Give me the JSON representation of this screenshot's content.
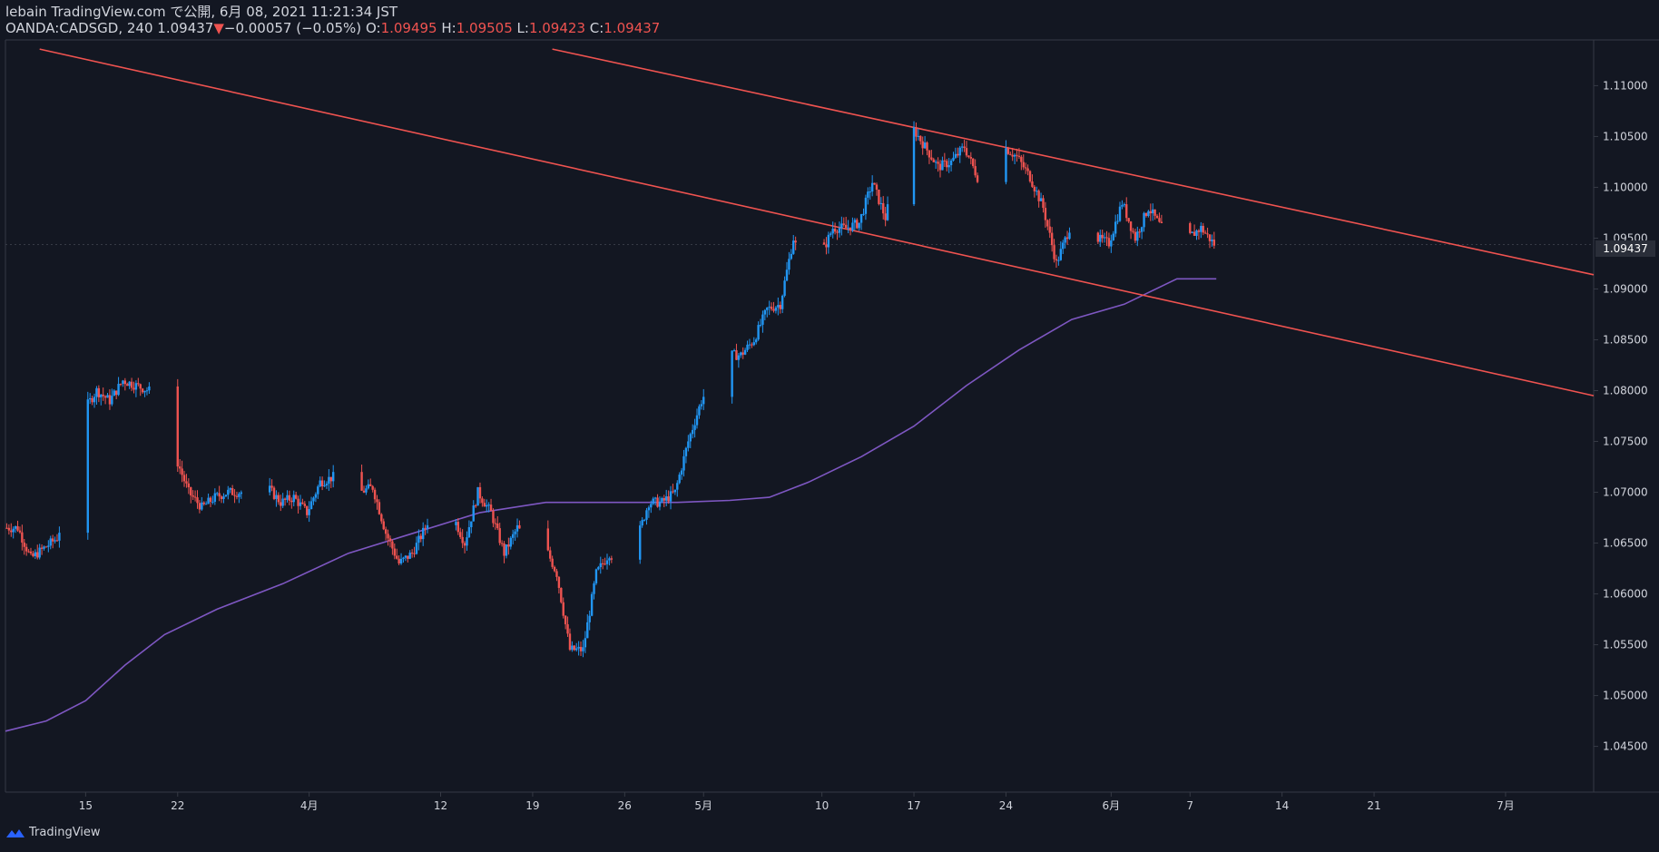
{
  "header": {
    "publish_line": "lebain TradingView.com で公開, 6月 08, 2021 11:21:34 JST",
    "symbol": "OANDA:CADSGD, 240",
    "last": "1.09437",
    "change_arrow": "▼",
    "change": "−0.00057 (−0.05%)",
    "o_label": "O:",
    "o_value": "1.09495",
    "h_label": "H:",
    "h_value": "1.09505",
    "l_label": "L:",
    "l_value": "1.09423",
    "c_label": "C:",
    "c_value": "1.09437"
  },
  "footer": {
    "brand": "TradingView"
  },
  "price_tag": "1.09437",
  "colors": {
    "background": "#131722",
    "up": "#2196f3",
    "down": "#ef5350",
    "ma": "#7e57c2",
    "trendline": "#ef5350",
    "axis_text": "#d1d4dc",
    "grid": "#363a45"
  },
  "chart_data": {
    "type": "candlestick",
    "title": "OANDA:CADSGD, 240",
    "ylim": [
      1.0405,
      1.1145
    ],
    "y_ticks": [
      "1.04500",
      "1.05000",
      "1.05500",
      "1.06000",
      "1.06500",
      "1.07000",
      "1.07500",
      "1.08000",
      "1.08500",
      "1.09000",
      "1.09500",
      "1.10000",
      "1.10500",
      "1.11000"
    ],
    "x_ticks": [
      {
        "label": "15",
        "day": 15
      },
      {
        "label": "22",
        "day": 22
      },
      {
        "label": "4月",
        "day": 32
      },
      {
        "label": "12",
        "day": 42
      },
      {
        "label": "19",
        "day": 49
      },
      {
        "label": "26",
        "day": 56
      },
      {
        "label": "5月",
        "day": 62
      },
      {
        "label": "10",
        "day": 71
      },
      {
        "label": "17",
        "day": 78
      },
      {
        "label": "24",
        "day": 85
      },
      {
        "label": "6月",
        "day": 93
      },
      {
        "label": "7",
        "day": 99
      },
      {
        "label": "14",
        "day": 106
      },
      {
        "label": "21",
        "day": 113
      },
      {
        "label": "7月",
        "day": 123
      }
    ],
    "x_range_days": [
      8.9,
      129.7
    ],
    "last_price": 1.09437,
    "price_path": [
      [
        9,
        1.0665
      ],
      [
        10,
        1.0665
      ],
      [
        11,
        1.0635
      ],
      [
        12,
        1.0645
      ],
      [
        13,
        1.0655
      ],
      [
        14,
        1.07
      ],
      [
        15,
        1.078
      ],
      [
        16,
        1.08
      ],
      [
        17,
        1.079
      ],
      [
        18,
        1.081
      ],
      [
        19,
        1.0805
      ],
      [
        20,
        1.08
      ],
      [
        21,
        1.0745
      ],
      [
        22,
        1.0735
      ],
      [
        23,
        1.07
      ],
      [
        24,
        1.0685
      ],
      [
        25,
        1.0695
      ],
      [
        26,
        1.07
      ],
      [
        27,
        1.07
      ],
      [
        28,
        1.069
      ],
      [
        29,
        1.0705
      ],
      [
        30,
        1.069
      ],
      [
        31,
        1.0695
      ],
      [
        32,
        1.068
      ],
      [
        33,
        1.071
      ],
      [
        34,
        1.0715
      ],
      [
        35,
        1.0715
      ],
      [
        36,
        1.07
      ],
      [
        37,
        1.0705
      ],
      [
        38,
        1.066
      ],
      [
        39,
        1.063
      ],
      [
        40,
        1.064
      ],
      [
        41,
        1.0665
      ],
      [
        42,
        1.07
      ],
      [
        43,
        1.068
      ],
      [
        44,
        1.065
      ],
      [
        45,
        1.07
      ],
      [
        46,
        1.068
      ],
      [
        47,
        1.064
      ],
      [
        48,
        1.0665
      ],
      [
        49,
        1.065
      ],
      [
        50,
        1.065
      ],
      [
        51,
        1.062
      ],
      [
        52,
        1.0545
      ],
      [
        53,
        1.0545
      ],
      [
        54,
        1.062
      ],
      [
        55,
        1.064
      ],
      [
        56,
        1.0625
      ],
      [
        57,
        1.065
      ],
      [
        58,
        1.069
      ],
      [
        59,
        1.069
      ],
      [
        60,
        1.07
      ],
      [
        61,
        1.075
      ],
      [
        62,
        1.079
      ],
      [
        63,
        1.0815
      ],
      [
        64,
        1.0835
      ],
      [
        65,
        1.0835
      ],
      [
        66,
        1.085
      ],
      [
        67,
        1.088
      ],
      [
        68,
        1.0885
      ],
      [
        69,
        1.095
      ],
      [
        70,
        1.091
      ],
      [
        71,
        1.093
      ],
      [
        72,
        1.096
      ],
      [
        73,
        1.096
      ],
      [
        74,
        1.0965
      ],
      [
        75,
        1.1005
      ],
      [
        76,
        1.097
      ],
      [
        77,
        1.1025
      ],
      [
        78,
        1.106
      ],
      [
        79,
        1.104
      ],
      [
        80,
        1.102
      ],
      [
        81,
        1.1025
      ],
      [
        82,
        1.104
      ],
      [
        83,
        1.101
      ],
      [
        84,
        1.1035
      ],
      [
        85,
        1.104
      ],
      [
        86,
        1.103
      ],
      [
        87,
        1.101
      ],
      [
        88,
        1.098
      ],
      [
        89,
        1.0925
      ],
      [
        90,
        1.096
      ],
      [
        91,
        1.095
      ],
      [
        92,
        1.095
      ],
      [
        93,
        1.0945
      ],
      [
        94,
        1.0985
      ],
      [
        95,
        1.095
      ],
      [
        96,
        1.098
      ],
      [
        97,
        1.096
      ],
      [
        98,
        1.0955
      ],
      [
        99,
        1.095
      ],
      [
        100,
        1.096
      ],
      [
        101,
        1.0944
      ]
    ],
    "series": [
      {
        "name": "MA",
        "points": [
          [
            8.9,
            1.0465
          ],
          [
            12,
            1.0475
          ],
          [
            15,
            1.0495
          ],
          [
            18,
            1.053
          ],
          [
            21,
            1.056
          ],
          [
            25,
            1.0585
          ],
          [
            30,
            1.061
          ],
          [
            35,
            1.064
          ],
          [
            40,
            1.066
          ],
          [
            45,
            1.068
          ],
          [
            50,
            1.069
          ],
          [
            55,
            1.069
          ],
          [
            60,
            1.069
          ],
          [
            64,
            1.0692
          ],
          [
            67,
            1.0695
          ],
          [
            70,
            1.071
          ],
          [
            74,
            1.0735
          ],
          [
            78,
            1.0765
          ],
          [
            82,
            1.0805
          ],
          [
            86,
            1.084
          ],
          [
            90,
            1.087
          ],
          [
            94,
            1.0885
          ],
          [
            98,
            1.091
          ],
          [
            101,
            1.091
          ]
        ]
      },
      {
        "name": "upper trendline",
        "points": [
          [
            50.5,
            1.1136
          ],
          [
            129.7,
            1.0914
          ]
        ]
      },
      {
        "name": "lower trendline",
        "points": [
          [
            11.5,
            1.1136
          ],
          [
            129.7,
            1.0795
          ]
        ]
      }
    ]
  }
}
